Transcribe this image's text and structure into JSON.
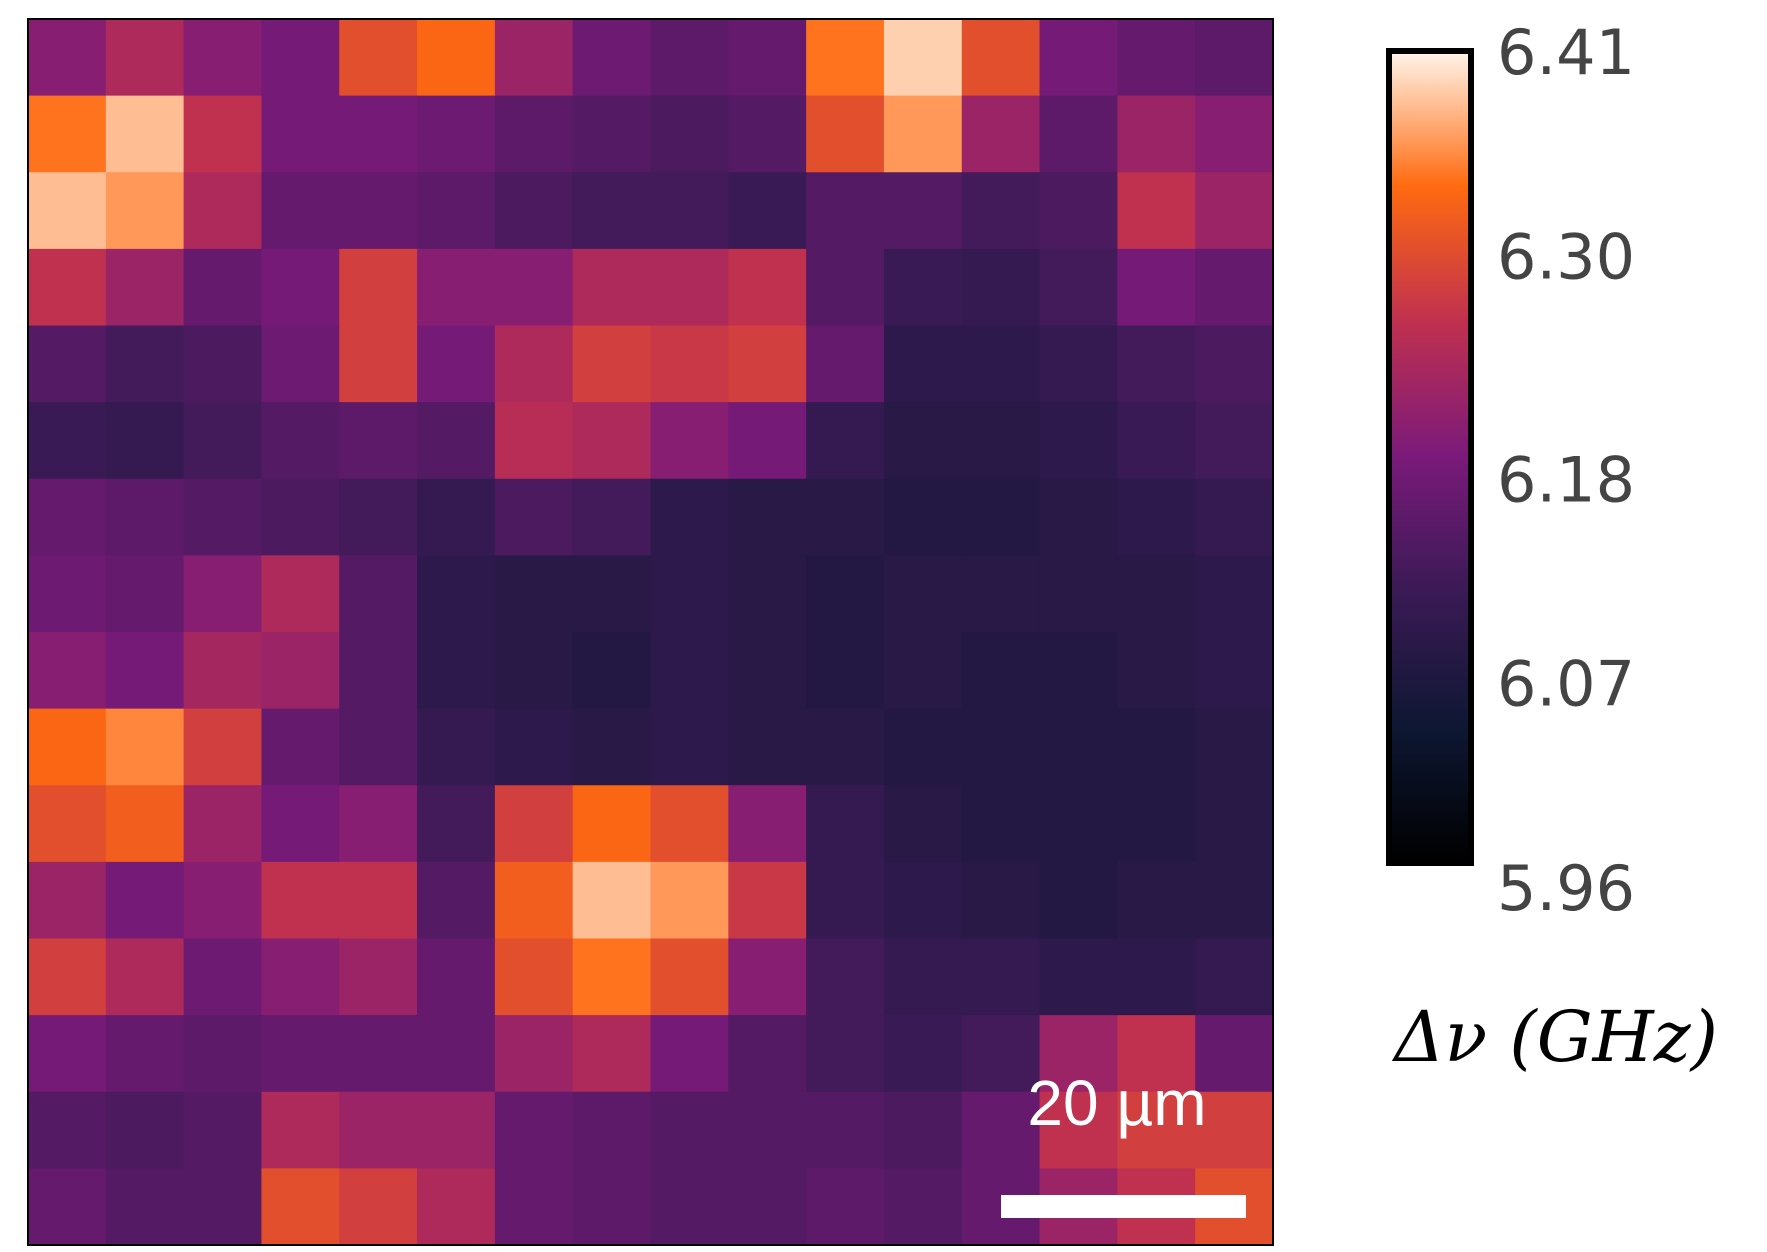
{
  "chart_data": {
    "type": "heatmap",
    "z": [
      [
        6.2,
        6.24,
        6.2,
        6.18,
        6.3,
        6.33,
        6.22,
        6.17,
        6.15,
        6.16,
        6.34,
        6.39,
        6.3,
        6.18,
        6.16,
        6.15
      ],
      [
        6.34,
        6.38,
        6.26,
        6.18,
        6.18,
        6.17,
        6.15,
        6.14,
        6.13,
        6.14,
        6.3,
        6.36,
        6.22,
        6.15,
        6.22,
        6.2
      ],
      [
        6.38,
        6.36,
        6.24,
        6.16,
        6.16,
        6.15,
        6.13,
        6.12,
        6.12,
        6.11,
        6.14,
        6.14,
        6.12,
        6.13,
        6.26,
        6.22
      ],
      [
        6.26,
        6.22,
        6.16,
        6.18,
        6.28,
        6.2,
        6.2,
        6.24,
        6.24,
        6.26,
        6.14,
        6.11,
        6.1,
        6.12,
        6.18,
        6.16
      ],
      [
        6.14,
        6.12,
        6.13,
        6.17,
        6.28,
        6.18,
        6.24,
        6.28,
        6.27,
        6.28,
        6.16,
        6.09,
        6.09,
        6.1,
        6.12,
        6.13
      ],
      [
        6.11,
        6.1,
        6.12,
        6.14,
        6.15,
        6.14,
        6.25,
        6.24,
        6.2,
        6.18,
        6.1,
        6.08,
        6.08,
        6.09,
        6.11,
        6.12
      ],
      [
        6.16,
        6.15,
        6.14,
        6.13,
        6.12,
        6.1,
        6.13,
        6.12,
        6.09,
        6.08,
        6.08,
        6.07,
        6.07,
        6.08,
        6.09,
        6.1
      ],
      [
        6.17,
        6.16,
        6.2,
        6.24,
        6.14,
        6.09,
        6.08,
        6.08,
        6.09,
        6.08,
        6.07,
        6.08,
        6.08,
        6.08,
        6.08,
        6.09
      ],
      [
        6.2,
        6.18,
        6.23,
        6.22,
        6.14,
        6.09,
        6.08,
        6.07,
        6.09,
        6.08,
        6.07,
        6.08,
        6.07,
        6.07,
        6.08,
        6.09
      ],
      [
        6.33,
        6.35,
        6.28,
        6.16,
        6.14,
        6.1,
        6.09,
        6.08,
        6.09,
        6.08,
        6.08,
        6.07,
        6.07,
        6.07,
        6.07,
        6.08
      ],
      [
        6.3,
        6.32,
        6.22,
        6.18,
        6.2,
        6.12,
        6.28,
        6.33,
        6.3,
        6.2,
        6.1,
        6.08,
        6.07,
        6.07,
        6.07,
        6.08
      ],
      [
        6.22,
        6.18,
        6.2,
        6.26,
        6.26,
        6.14,
        6.32,
        6.38,
        6.36,
        6.27,
        6.1,
        6.09,
        6.08,
        6.07,
        6.08,
        6.08
      ],
      [
        6.28,
        6.24,
        6.17,
        6.2,
        6.22,
        6.16,
        6.3,
        6.34,
        6.3,
        6.2,
        6.12,
        6.1,
        6.1,
        6.09,
        6.09,
        6.1
      ],
      [
        6.18,
        6.16,
        6.15,
        6.16,
        6.16,
        6.16,
        6.22,
        6.24,
        6.18,
        6.14,
        6.12,
        6.11,
        6.12,
        6.22,
        6.26,
        6.16
      ],
      [
        6.14,
        6.13,
        6.14,
        6.24,
        6.22,
        6.22,
        6.16,
        6.15,
        6.14,
        6.14,
        6.14,
        6.13,
        6.16,
        6.26,
        6.28,
        6.28
      ],
      [
        6.16,
        6.14,
        6.14,
        6.3,
        6.28,
        6.24,
        6.16,
        6.15,
        6.14,
        6.14,
        6.15,
        6.14,
        6.16,
        6.22,
        6.26,
        6.3
      ]
    ],
    "clim": [
      5.96,
      6.41
    ],
    "cticks": [
      6.41,
      {
        "value": 6.3,
        "label": "6.30"
      },
      6.18,
      6.07,
      5.96
    ],
    "colormap": [
      "#000000",
      "#0e1733",
      "#3a1a55",
      "#7a1a7a",
      "#c0304f",
      "#ff6a10",
      "#fff5ea"
    ],
    "colorbar_label": "Δν (GHz)",
    "scale_bar": {
      "label": "20 µm"
    }
  }
}
